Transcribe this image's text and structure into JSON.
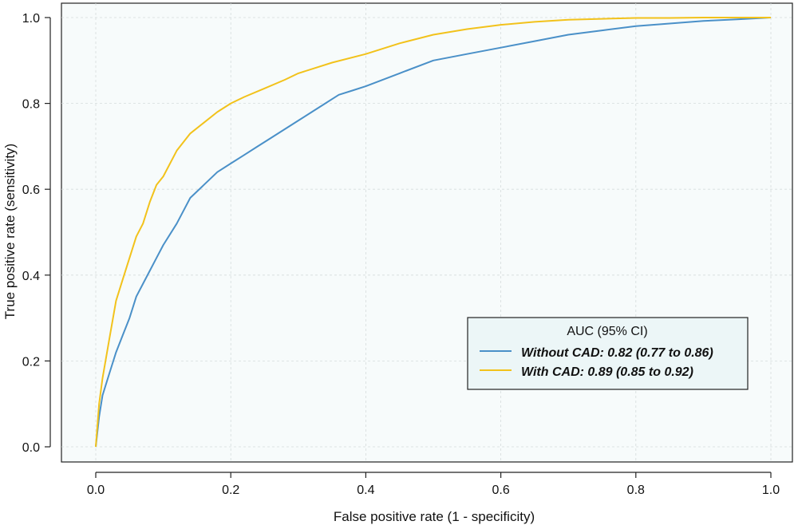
{
  "chart_data": {
    "type": "line",
    "xlabel": "False positive rate (1 - specificity)",
    "ylabel": "True positive rate (sensitivity)",
    "xlim": [
      0.0,
      1.0
    ],
    "ylim": [
      0.0,
      1.0
    ],
    "x_ticks": [
      "0.0",
      "0.2",
      "0.4",
      "0.6",
      "0.8",
      "1.0"
    ],
    "y_ticks": [
      "0.0",
      "0.2",
      "0.4",
      "0.6",
      "0.8",
      "1.0"
    ],
    "grid": true,
    "legend": {
      "title": "AUC (95% CI)",
      "placement": "bottom-right"
    },
    "series": [
      {
        "name": "Without CAD: 0.82 (0.77 to 0.86)",
        "color": "#4a90c8",
        "x": [
          0.0,
          0.005,
          0.01,
          0.02,
          0.03,
          0.04,
          0.05,
          0.06,
          0.07,
          0.08,
          0.09,
          0.1,
          0.12,
          0.14,
          0.16,
          0.18,
          0.2,
          0.22,
          0.24,
          0.26,
          0.28,
          0.3,
          0.32,
          0.34,
          0.36,
          0.38,
          0.4,
          0.45,
          0.5,
          0.55,
          0.6,
          0.65,
          0.7,
          0.75,
          0.8,
          0.85,
          0.9,
          0.95,
          1.0
        ],
        "y": [
          0.0,
          0.07,
          0.12,
          0.17,
          0.22,
          0.26,
          0.3,
          0.35,
          0.38,
          0.41,
          0.44,
          0.47,
          0.52,
          0.58,
          0.61,
          0.64,
          0.66,
          0.68,
          0.7,
          0.72,
          0.74,
          0.76,
          0.78,
          0.8,
          0.82,
          0.83,
          0.84,
          0.87,
          0.9,
          0.915,
          0.93,
          0.945,
          0.96,
          0.97,
          0.98,
          0.986,
          0.992,
          0.996,
          1.0
        ]
      },
      {
        "name": "With CAD: 0.89 (0.85 to 0.92)",
        "color": "#f2c21b",
        "x": [
          0.0,
          0.005,
          0.01,
          0.02,
          0.03,
          0.04,
          0.05,
          0.06,
          0.07,
          0.08,
          0.09,
          0.1,
          0.12,
          0.14,
          0.16,
          0.18,
          0.2,
          0.22,
          0.25,
          0.28,
          0.3,
          0.35,
          0.4,
          0.45,
          0.5,
          0.55,
          0.6,
          0.65,
          0.7,
          0.75,
          0.8,
          0.85,
          0.9,
          0.95,
          1.0
        ],
        "y": [
          0.0,
          0.1,
          0.16,
          0.25,
          0.34,
          0.39,
          0.44,
          0.49,
          0.52,
          0.57,
          0.61,
          0.63,
          0.69,
          0.73,
          0.755,
          0.78,
          0.8,
          0.815,
          0.835,
          0.855,
          0.87,
          0.895,
          0.915,
          0.94,
          0.96,
          0.973,
          0.983,
          0.99,
          0.995,
          0.997,
          0.999,
          0.999,
          1.0,
          1.0,
          1.0
        ]
      }
    ]
  }
}
